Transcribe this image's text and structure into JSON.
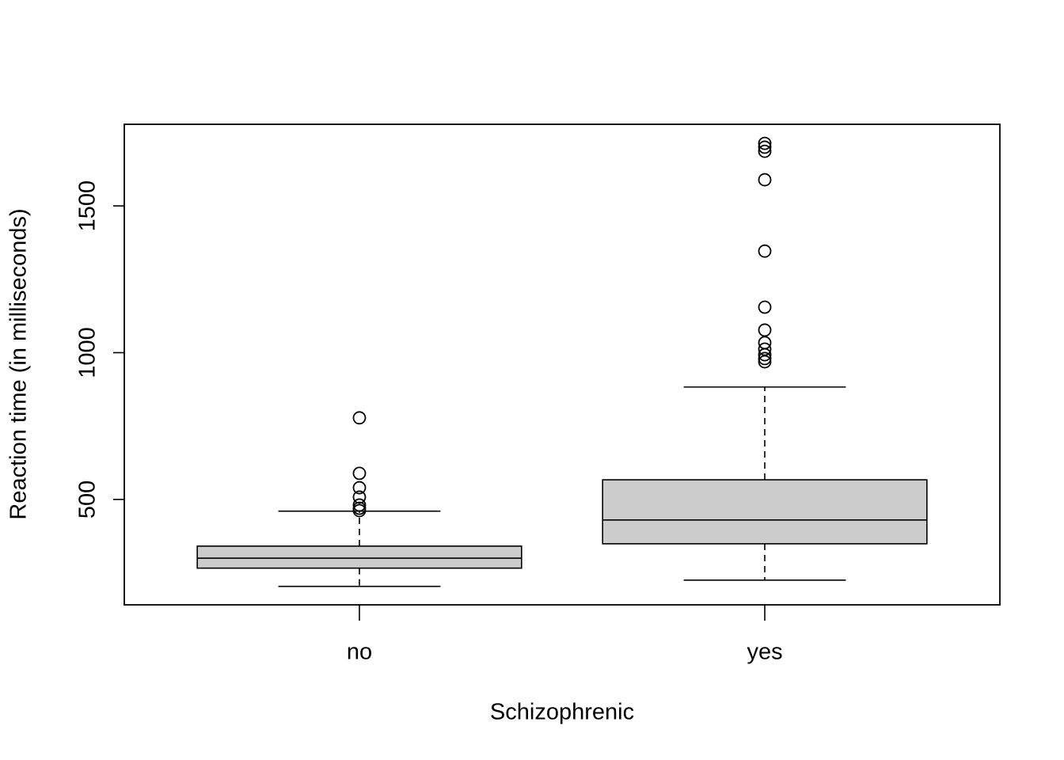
{
  "chart_data": {
    "type": "box",
    "x_label": "Schizophrenic",
    "y_label": "Reaction time (in milliseconds)",
    "categories": [
      "no",
      "yes"
    ],
    "color": "#cccccc",
    "min": [
      204,
      225
    ],
    "q1": [
      266,
      349
    ],
    "median": [
      300,
      430
    ],
    "q3": [
      341,
      567
    ],
    "max": [
      460,
      883
    ],
    "outliers": [
      [
        778,
        589,
        540,
        508,
        481,
        470,
        462
      ],
      [
        1713,
        1700,
        1686,
        1589,
        1346,
        1155,
        1077,
        1034,
        1012,
        993,
        980,
        969
      ]
    ],
    "ylim": [
      141,
      1778
    ],
    "yticks": [
      500,
      1000,
      1500
    ]
  }
}
